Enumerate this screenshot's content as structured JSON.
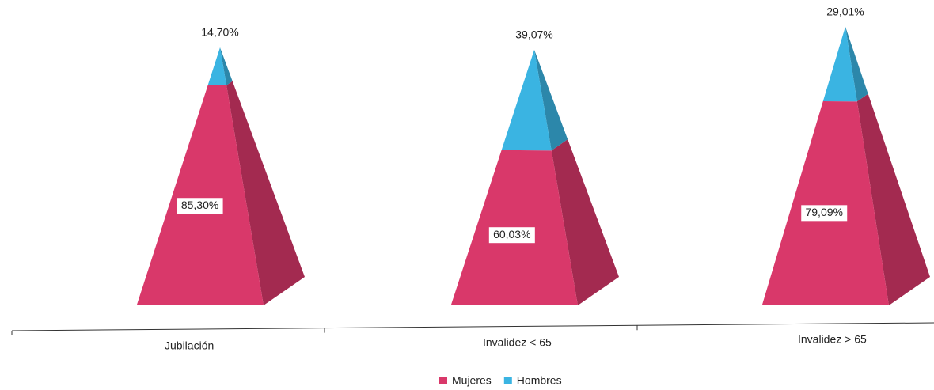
{
  "chart_data": {
    "type": "pyramid",
    "categories": [
      "Jubilación",
      "Invalidez < 65",
      "Invalidez > 65"
    ],
    "series": [
      {
        "name": "Mujeres",
        "color": "#d9386a",
        "values": [
          85.3,
          60.03,
          79.09
        ],
        "value_labels": [
          "85,30%",
          "60,03%",
          "79,09%"
        ]
      },
      {
        "name": "Hombres",
        "color": "#3ab4e2",
        "values": [
          14.7,
          39.07,
          29.01
        ],
        "value_labels": [
          "14,70%",
          "39,07%",
          "29,01%"
        ]
      }
    ],
    "legend": "bottom"
  }
}
